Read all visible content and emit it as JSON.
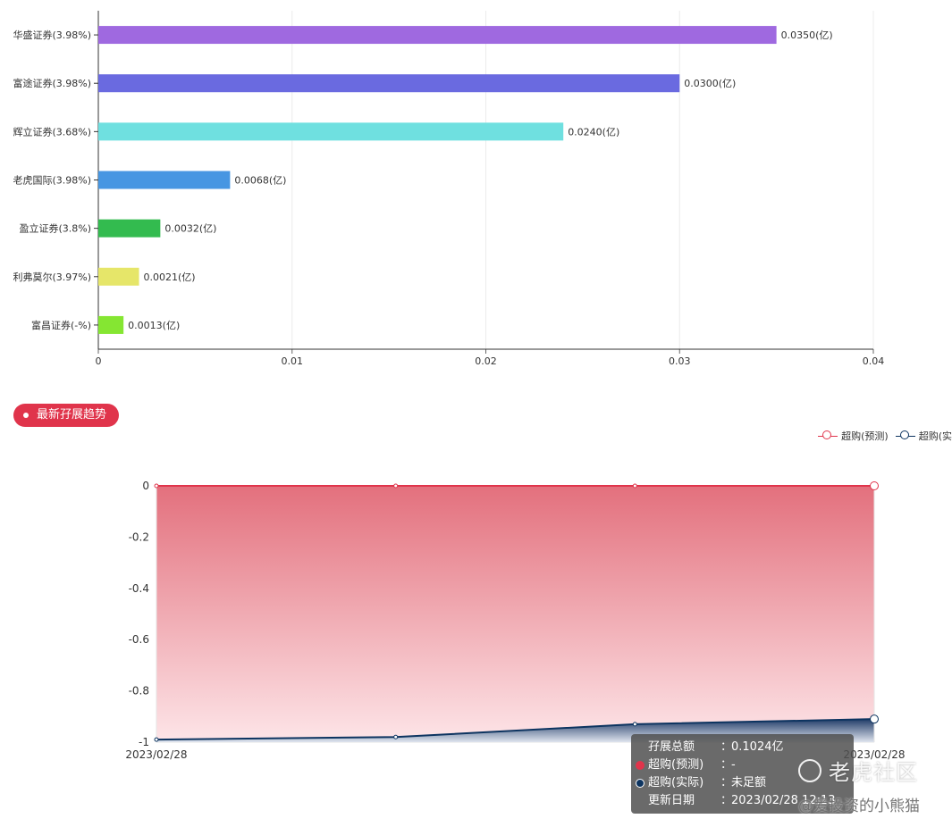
{
  "chart_data": [
    {
      "type": "bar",
      "orientation": "horizontal",
      "categories": [
        "华盛证券(3.98%)",
        "富途证券(3.98%)",
        "辉立证券(3.68%)",
        "老虎国际(3.98%)",
        "盈立证券(3.8%)",
        "利弗莫尔(3.97%)",
        "富昌证券(-%)"
      ],
      "values": [
        0.035,
        0.03,
        0.024,
        0.0068,
        0.0032,
        0.0021,
        0.0013
      ],
      "value_labels": [
        "0.0350(亿)",
        "0.0300(亿)",
        "0.0240(亿)",
        "0.0068(亿)",
        "0.0032(亿)",
        "0.0021(亿)",
        "0.0013(亿)"
      ],
      "colors": [
        "#9f69e0",
        "#6a6ae0",
        "#6fe0e0",
        "#4796e2",
        "#33bb4f",
        "#e6e669",
        "#85e632"
      ],
      "xlim": [
        0,
        0.04
      ],
      "xticks": [
        "0",
        "0.01",
        "0.02",
        "0.03",
        "0.04"
      ],
      "grid": true
    },
    {
      "type": "area",
      "x": [
        "2023/02/28",
        "2023/02/28",
        "2023/02/28",
        "2023/02/28"
      ],
      "xtick_labels": [
        "2023/02/28",
        "2023/02/28"
      ],
      "ylim": [
        -1,
        0
      ],
      "yticks": [
        "0",
        "-0.2",
        "-0.4",
        "-0.6",
        "-0.8",
        "-1"
      ],
      "series": [
        {
          "name": "超购(预测)",
          "values": [
            0,
            0,
            0,
            0
          ],
          "color": "#e0344b"
        },
        {
          "name": "超购(实际)",
          "values": [
            -0.99,
            -0.98,
            -0.93,
            -0.91
          ],
          "color": "#0d3460"
        }
      ],
      "legend_position": "top-right",
      "grid": true
    }
  ],
  "section_title": "最新孖展趋势",
  "legend": [
    {
      "label": "超购(预测)",
      "color": "#e0344b"
    },
    {
      "label": "超购(实",
      "color": "#0d3460"
    }
  ],
  "tooltip": {
    "rows": [
      {
        "key": "孖展总额",
        "sep": "：",
        "value": "0.1024亿"
      },
      {
        "key": "超购(预测)",
        "sep": "：",
        "value": "-",
        "color": "#e0344b"
      },
      {
        "key": "超购(实际)",
        "sep": "：",
        "value": "未足额",
        "color": "#0d3460"
      },
      {
        "key": "更新日期",
        "sep": "：",
        "value": "2023/02/28 12:13"
      }
    ]
  },
  "watermark": {
    "brand": "老虎社区",
    "user": "@爱投资的小熊猫"
  }
}
